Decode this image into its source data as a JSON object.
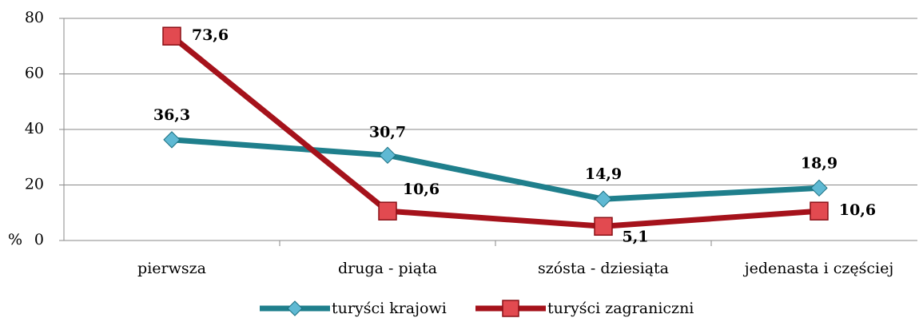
{
  "chart_data": {
    "type": "line",
    "y_label": "%",
    "categories": [
      "pierwsza",
      "druga - piąta",
      "szósta - dziesiąta",
      "jedenasta i częściej"
    ],
    "series": [
      {
        "name": "turyści krajowi",
        "color": "#1f7f8c",
        "marker": "diamond",
        "marker_color": "#5fb9d3",
        "values": [
          36.3,
          30.7,
          14.9,
          18.9
        ],
        "value_labels": [
          "36,3",
          "30,7",
          "14,9",
          "18,9"
        ]
      },
      {
        "name": "turyści zagraniczni",
        "color": "#a5121b",
        "marker": "square",
        "marker_color": "#e24a50",
        "values": [
          73.6,
          10.6,
          5.1,
          10.6
        ],
        "value_labels": [
          "73,6",
          "10,6",
          "5,1",
          "10,6"
        ]
      }
    ],
    "ylim": [
      0,
      80
    ],
    "yticks": [
      0,
      20,
      40,
      60,
      80
    ],
    "grid": true,
    "legend": "bottom"
  }
}
